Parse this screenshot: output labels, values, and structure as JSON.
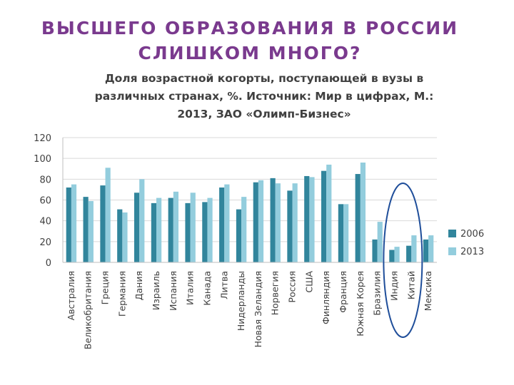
{
  "slide": {
    "title_lines": [
      "ВЫСШЕГО ОБРАЗОВАНИЯ В РОССИИ",
      "СЛИШКОМ МНОГО?"
    ]
  },
  "chart_data": {
    "type": "bar",
    "title_lines": [
      "Доля возрастной когорты, поступающей в вузы в",
      "различных странах, %. Источник: Мир в цифрах, М.:",
      "2013, ЗАО «Олимп-Бизнес»"
    ],
    "xlabel": "",
    "ylabel": "",
    "ylim": [
      0,
      120
    ],
    "yticks": [
      0,
      20,
      40,
      60,
      80,
      100,
      120
    ],
    "grid": true,
    "legend_position": "right",
    "categories": [
      "Австралия",
      "Великобритания",
      "Греция",
      "Германия",
      "Дания",
      "Израиль",
      "Испания",
      "Италия",
      "Канада",
      "Литва",
      "Нидерланды",
      "Новая Зеландия",
      "Норвегия",
      "Россия",
      "США",
      "Финляндия",
      "Франция",
      "Южная Корея",
      "Бразилия",
      "Индия",
      "Китай",
      "Мексика"
    ],
    "series": [
      {
        "name": "2006",
        "color": "#31859c",
        "values": [
          72,
          63,
          74,
          51,
          67,
          57,
          62,
          57,
          58,
          72,
          51,
          77,
          81,
          69,
          83,
          88,
          56,
          85,
          22,
          12,
          16,
          22
        ]
      },
      {
        "name": "2013",
        "color": "#93cddd",
        "values": [
          75,
          59,
          91,
          48,
          80,
          62,
          68,
          67,
          62,
          75,
          63,
          79,
          76,
          76,
          82,
          94,
          56,
          96,
          39,
          15,
          26,
          26
        ]
      }
    ],
    "highlight": {
      "shape": "ellipse",
      "color": "#1f4e9a",
      "categories": [
        "Индия",
        "Китай"
      ]
    }
  }
}
